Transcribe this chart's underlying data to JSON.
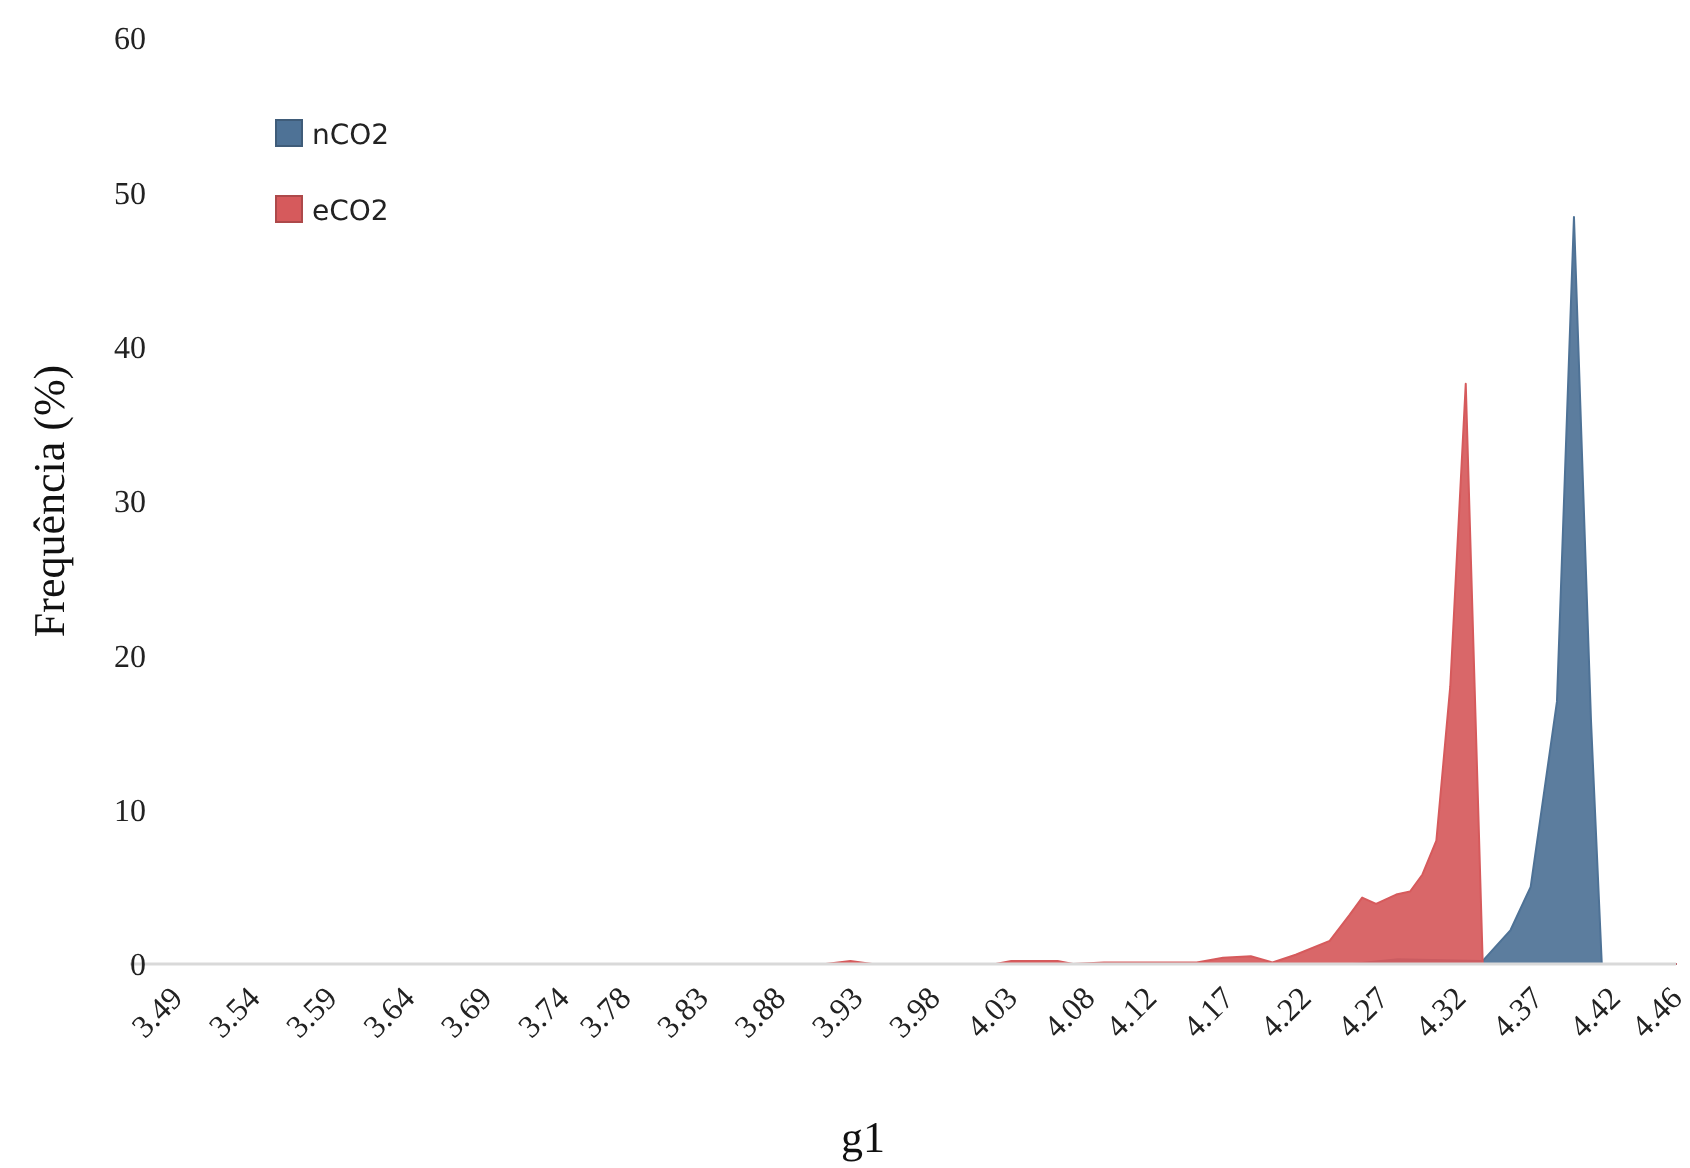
{
  "chart_data": {
    "type": "area",
    "xlabel": "g1",
    "ylabel": "Frequência (%)",
    "legend": "top left",
    "xlim": [
      3.46,
      4.46
    ],
    "ylim": [
      0,
      60
    ],
    "yticks": [
      0,
      10,
      20,
      30,
      40,
      50,
      60
    ],
    "xticks": [
      3.49,
      3.54,
      3.59,
      3.64,
      3.69,
      3.74,
      3.78,
      3.83,
      3.88,
      3.93,
      3.98,
      4.03,
      4.08,
      4.12,
      4.17,
      4.22,
      4.27,
      4.32,
      4.37,
      4.42,
      4.46
    ],
    "series": [
      {
        "name": "nCO2",
        "color": "#4e7296",
        "x": [
          3.49,
          4.25,
          4.28,
          4.335,
          4.353,
          4.366,
          4.383,
          4.394,
          4.405,
          4.412,
          4.46
        ],
        "values": [
          0,
          0,
          0.3,
          0.2,
          2.2,
          5,
          17,
          48.4,
          15.8,
          0,
          0
        ]
      },
      {
        "name": "eCO2",
        "color": "#d65a5c",
        "x": [
          3.49,
          3.91,
          3.926,
          3.94,
          4.02,
          4.03,
          4.06,
          4.07,
          4.09,
          4.15,
          4.167,
          4.185,
          4.199,
          4.214,
          4.236,
          4.249,
          4.257,
          4.266,
          4.279,
          4.288,
          4.296,
          4.305,
          4.314,
          4.324,
          4.335,
          4.46
        ],
        "values": [
          0,
          0,
          0.2,
          0,
          0,
          0.2,
          0.2,
          0,
          0.1,
          0.1,
          0.4,
          0.5,
          0.1,
          0.6,
          1.5,
          3.2,
          4.3,
          3.9,
          4.5,
          4.7,
          5.8,
          8,
          18,
          37.6,
          0,
          0
        ]
      }
    ]
  }
}
